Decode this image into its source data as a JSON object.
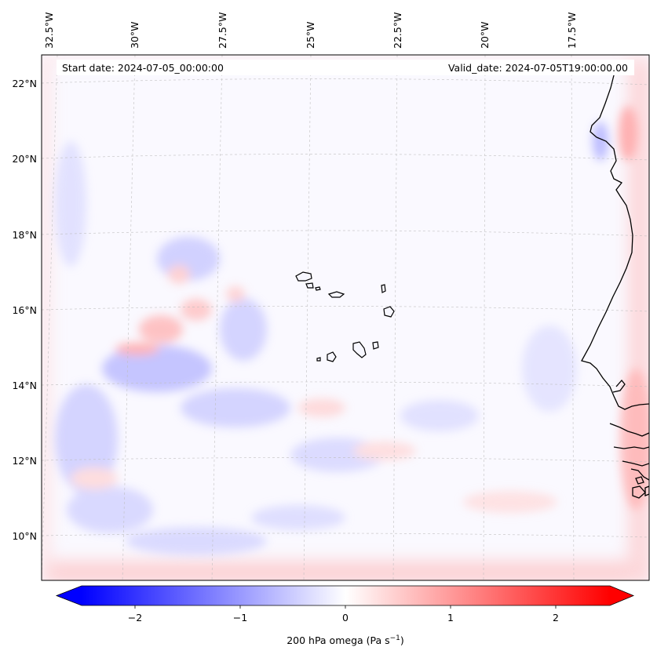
{
  "map": {
    "start_label": "Start date: 2024-07-05_00:00:00",
    "valid_label": "Valid_date: 2024-07-05T19:00:00.00",
    "lon_labels": [
      "32.5°W",
      "30°W",
      "27.5°W",
      "25°W",
      "22.5°W",
      "20°W",
      "17.5°W"
    ],
    "lat_labels": [
      "22°N",
      "20°N",
      "18°N",
      "16°N",
      "14°N",
      "12°N",
      "10°N"
    ],
    "features": [
      "Cape Verde islands",
      "West African coastline"
    ]
  },
  "colorbar": {
    "label_main": "200 hPa omega (Pa s",
    "label_exp": "−1",
    "label_close": ")",
    "ticks": [
      "−2",
      "−1",
      "0",
      "1",
      "2"
    ],
    "range": [
      -2.7,
      2.7
    ],
    "colors": {
      "negative": "#0000ff",
      "zero": "#ffffff",
      "positive": "#ff0000"
    }
  }
}
